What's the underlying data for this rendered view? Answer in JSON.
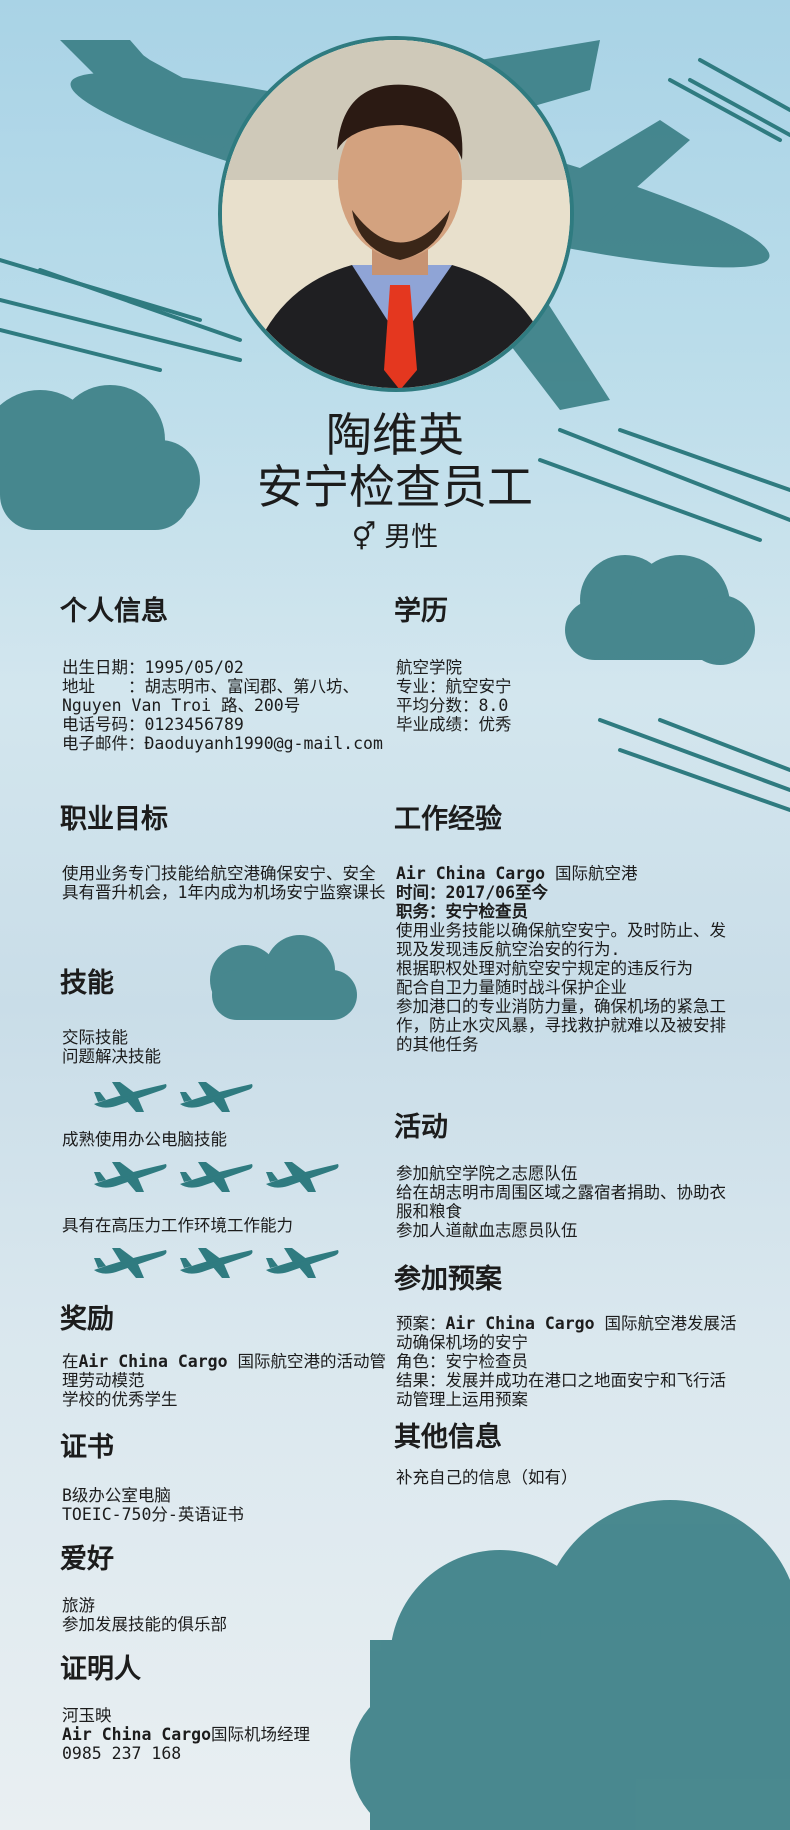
{
  "header": {
    "name": "陶维英",
    "role": "安宁检查员工",
    "gender": "男性",
    "gender_icon": "⚥"
  },
  "personal": {
    "title": "个人信息",
    "lines": [
      "出生日期：1995/05/02",
      "地址　　：胡志明市、富闰郡、第八坊、Nguyen Van Troi 路、200号",
      "电话号码：0123456789",
      "电子邮件：Đaoduyanh1990@g-mail.com"
    ]
  },
  "education": {
    "title": "学历",
    "lines": [
      "航空学院",
      "专业：航空安宁",
      "平均分数：8.0",
      "毕业成绩：优秀"
    ]
  },
  "objective": {
    "title": "职业目标",
    "lines": [
      "使用业务专门技能给航空港确保安宁、安全",
      "具有晋升机会，1年内成为机场安宁监察课长"
    ]
  },
  "experience": {
    "title": "工作经验",
    "company": "Air China Cargo",
    "company_suffix": " 国际航空港",
    "time": "时间：2017/06至今",
    "position": "职务：安宁检查员",
    "lines": [
      "使用业务技能以确保航空安宁。及时防止、发现及发现违反航空治安的行为.",
      "根据职权处理对航空安宁规定的违反行为",
      "配合自卫力量随时战斗保护企业",
      "参加港口的专业消防力量，确保机场的紧急工作，防止水灾风暴，寻找救护就难以及被安排的其他任务"
    ]
  },
  "skills": {
    "title": "技能",
    "items": [
      {
        "label": "交际技能\n问题解决技能",
        "rating": 2
      },
      {
        "label": "成熟使用办公电脑技能",
        "rating": 3
      },
      {
        "label": "具有在高压力工作环境工作能力",
        "rating": 3
      }
    ]
  },
  "activities": {
    "title": "活动",
    "lines": [
      "参加航空学院之志愿队伍",
      "给在胡志明市周围区域之露宿者捐助、协助衣服和粮食",
      "参加人道献血志愿员队伍"
    ]
  },
  "projects": {
    "title": "参加预案",
    "project_prefix": "预案：",
    "project_company": "Air China Cargo",
    "project_suffix": " 国际航空港发展活动确保机场的安宁",
    "lines": [
      "角色：安宁检查员",
      "结果：发展并成功在港口之地面安宁和飞行活动管理上运用预案"
    ]
  },
  "awards": {
    "title": "奖励",
    "prefix": "在",
    "company": "Air China Cargo",
    "suffix": " 国际航空港的活动管理劳动模范",
    "lines": [
      "学校的优秀学生"
    ]
  },
  "certificates": {
    "title": "证书",
    "lines": [
      "B级办公室电脑",
      "TOEIC-750分-英语证书"
    ]
  },
  "hobbies": {
    "title": "爱好",
    "lines": [
      "旅游",
      "参加发展技能的俱乐部"
    ]
  },
  "other": {
    "title": "其他信息",
    "lines": [
      "补充自己的信息（如有）"
    ]
  },
  "reference": {
    "title": "证明人",
    "name": "河玉映",
    "company": "Air China Cargo",
    "company_suffix": "国际机场经理",
    "phone": "0985 237 168"
  },
  "colors": {
    "accent": "#2f7b80",
    "background": "#b9dcea"
  }
}
